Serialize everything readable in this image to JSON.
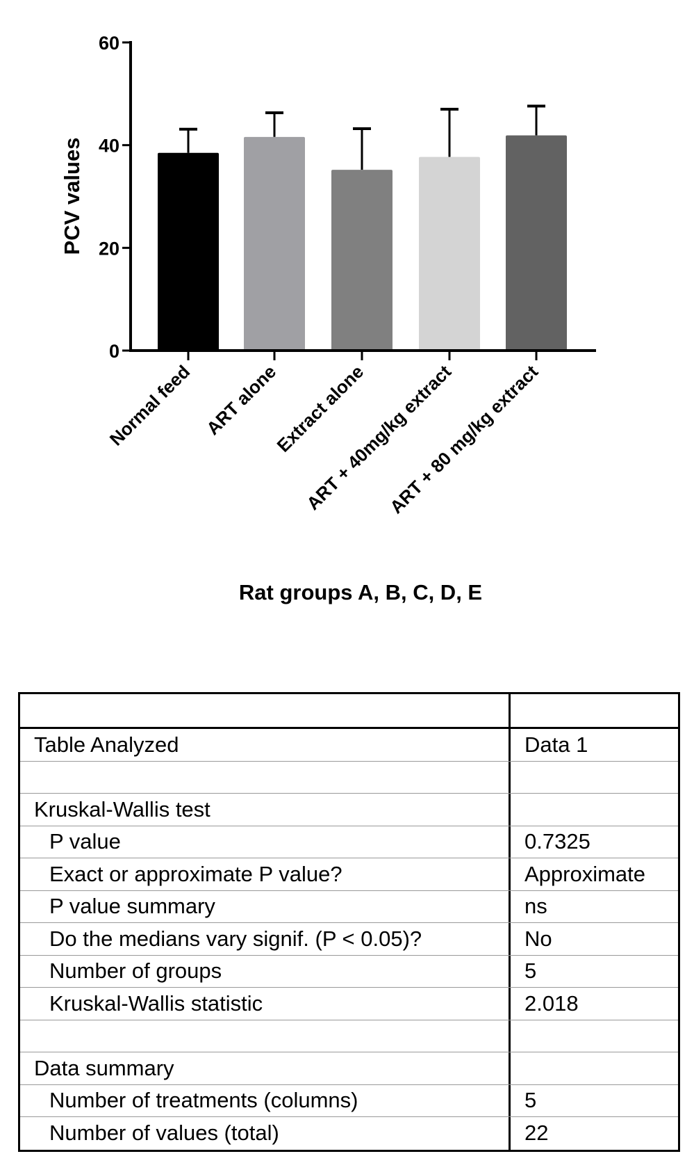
{
  "chart_data": {
    "type": "bar",
    "title": "",
    "xlabel": "Rat groups A, B, C, D, E",
    "ylabel": "PCV values",
    "ylim": [
      0,
      60
    ],
    "yticks": [
      0,
      20,
      40,
      60
    ],
    "categories": [
      "Normal feed",
      "ART alone",
      "Extract alone",
      "ART + 40mg/kg extract",
      "ART + 80 mg/kg extract"
    ],
    "values": [
      38.5,
      41.6,
      35.2,
      37.7,
      41.9
    ],
    "error_upper": [
      43.1,
      46.3,
      43.2,
      47.0,
      47.6
    ],
    "colors": [
      "#000000",
      "#a0a0a4",
      "#808080",
      "#d4d4d4",
      "#626262"
    ],
    "grid": false
  },
  "table": {
    "header": [
      "",
      ""
    ],
    "rows": [
      {
        "label": "Table Analyzed",
        "value": "Data 1",
        "level": 0
      },
      {
        "label": "",
        "value": "",
        "level": 0
      },
      {
        "label": "Kruskal-Wallis test",
        "value": "",
        "level": 0
      },
      {
        "label": "P value",
        "value": "0.7325",
        "level": 1
      },
      {
        "label": "Exact or approximate P value?",
        "value": "Approximate",
        "level": 1
      },
      {
        "label": "P value summary",
        "value": "ns",
        "level": 1
      },
      {
        "label": "Do the medians vary signif. (P < 0.05)?",
        "value": "No",
        "level": 1
      },
      {
        "label": "Number of groups",
        "value": "5",
        "level": 1
      },
      {
        "label": "Kruskal-Wallis statistic",
        "value": "2.018",
        "level": 1
      },
      {
        "label": "",
        "value": "",
        "level": 0
      },
      {
        "label": "Data summary",
        "value": "",
        "level": 0
      },
      {
        "label": "Number of treatments (columns)",
        "value": "5",
        "level": 1
      },
      {
        "label": "Number of values (total)",
        "value": "22",
        "level": 1
      }
    ]
  }
}
